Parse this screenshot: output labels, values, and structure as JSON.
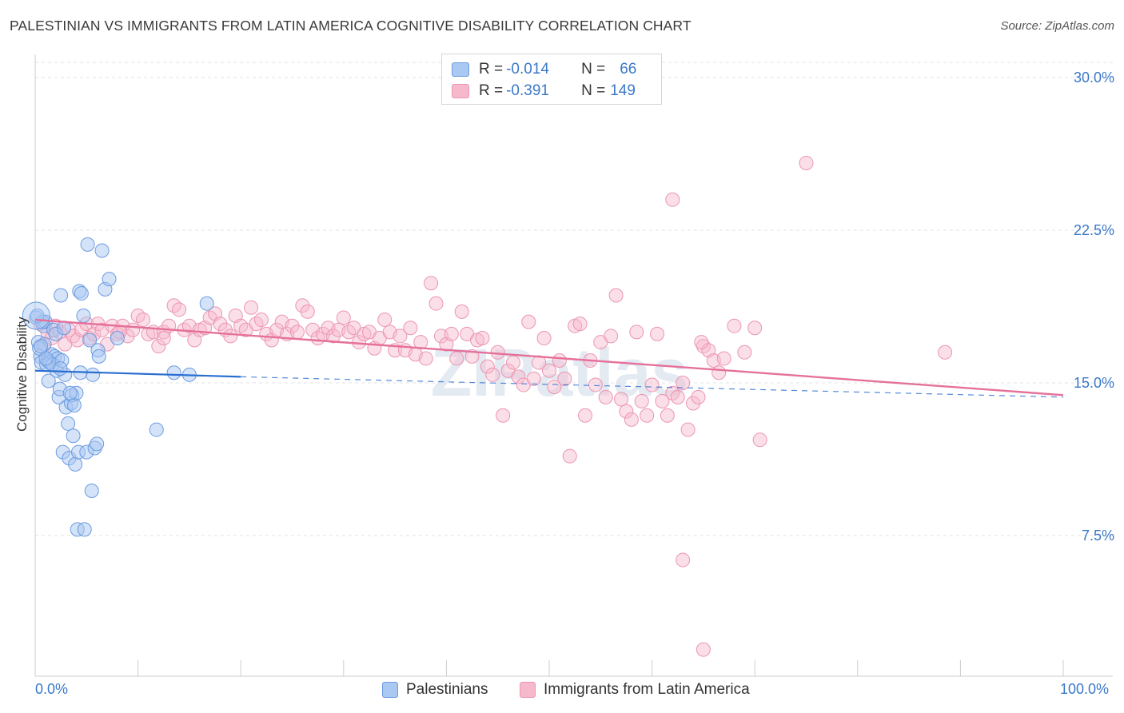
{
  "title": "PALESTINIAN VS IMMIGRANTS FROM LATIN AMERICA COGNITIVE DISABILITY CORRELATION CHART",
  "source": "Source: ZipAtlas.com",
  "watermark": "ZIPatlas",
  "colors": {
    "blue_fill": "#a9c8f2",
    "blue_stroke": "#6c9be0",
    "blue_line": "#2a6ed0",
    "pink_fill": "#f6b8cb",
    "pink_stroke": "#ec95b1",
    "pink_line": "#e5719a",
    "tick_text": "#3a78c9"
  },
  "stats": {
    "row1": {
      "r_label": "R = ",
      "r_value": "-0.014",
      "n_label": "N = ",
      "n_value": "66"
    },
    "row2": {
      "r_label": "R = ",
      "r_value": "-0.391",
      "n_label": "N = ",
      "n_value": "149"
    }
  },
  "legend": {
    "series1": "Palestinians",
    "series2": "Immigrants from Latin America"
  },
  "chart_data": {
    "type": "scatter",
    "title": "PALESTINIAN VS IMMIGRANTS FROM LATIN AMERICA COGNITIVE DISABILITY CORRELATION CHART",
    "xlabel": "",
    "ylabel": "Cognitive Disability",
    "xlim": [
      0,
      100
    ],
    "ylim": [
      0,
      31
    ],
    "x_tick_labels": [
      "0.0%",
      "100.0%"
    ],
    "y_ticks": [
      7.5,
      15.0,
      22.5,
      30.0
    ],
    "y_tick_labels": [
      "7.5%",
      "15.0%",
      "22.5%",
      "30.0%"
    ],
    "grid": true,
    "series": [
      {
        "name": "Palestinians",
        "color": "#a9c8f2",
        "trend": {
          "x0": 0,
          "y0": 15.6,
          "x1": 20,
          "y1": 15.3,
          "dash_to_x": 100,
          "dash_to_y": 14.3
        },
        "points": [
          [
            0.1,
            18.2
          ],
          [
            0.3,
            17.0
          ],
          [
            0.5,
            16.3
          ],
          [
            0.6,
            16.0
          ],
          [
            0.8,
            17.8
          ],
          [
            1.0,
            18.0
          ],
          [
            1.2,
            16.1
          ],
          [
            1.3,
            15.1
          ],
          [
            1.5,
            16.0
          ],
          [
            1.6,
            16.4
          ],
          [
            1.8,
            17.6
          ],
          [
            1.9,
            16.3
          ],
          [
            2.0,
            17.4
          ],
          [
            2.1,
            15.6
          ],
          [
            2.3,
            14.3
          ],
          [
            2.4,
            14.7
          ],
          [
            2.5,
            19.3
          ],
          [
            2.7,
            11.6
          ],
          [
            2.8,
            17.7
          ],
          [
            2.9,
            15.4
          ],
          [
            3.0,
            13.8
          ],
          [
            3.2,
            13.0
          ],
          [
            3.3,
            11.3
          ],
          [
            3.5,
            14.0
          ],
          [
            3.6,
            14.4
          ],
          [
            3.7,
            12.4
          ],
          [
            3.8,
            13.9
          ],
          [
            3.9,
            11.0
          ],
          [
            4.0,
            14.5
          ],
          [
            4.1,
            7.8
          ],
          [
            4.2,
            11.6
          ],
          [
            4.3,
            19.5
          ],
          [
            4.5,
            19.4
          ],
          [
            4.7,
            18.3
          ],
          [
            4.8,
            7.8
          ],
          [
            5.0,
            11.6
          ],
          [
            5.1,
            21.8
          ],
          [
            5.3,
            17.1
          ],
          [
            5.5,
            9.7
          ],
          [
            5.6,
            15.4
          ],
          [
            5.8,
            11.8
          ],
          [
            6.0,
            12.0
          ],
          [
            6.1,
            16.6
          ],
          [
            6.2,
            16.3
          ],
          [
            6.5,
            21.5
          ],
          [
            6.8,
            19.6
          ],
          [
            7.2,
            20.1
          ],
          [
            8.0,
            17.2
          ],
          [
            11.8,
            12.7
          ],
          [
            13.5,
            15.5
          ],
          [
            15.0,
            15.4
          ],
          [
            16.7,
            18.9
          ],
          [
            1.1,
            15.9
          ],
          [
            1.4,
            16.0
          ],
          [
            2.2,
            16.2
          ],
          [
            0.9,
            16.9
          ],
          [
            0.7,
            18.0
          ],
          [
            0.4,
            16.7
          ],
          [
            1.7,
            15.9
          ],
          [
            2.6,
            16.1
          ],
          [
            3.4,
            14.5
          ],
          [
            4.4,
            15.5
          ],
          [
            2.45,
            15.7
          ],
          [
            1.05,
            16.2
          ],
          [
            0.55,
            16.8
          ],
          [
            0.2,
            18.3
          ]
        ],
        "big_point": [
          0.1,
          18.3
        ]
      },
      {
        "name": "Immigrants from Latin America",
        "color": "#f6b8cb",
        "trend": {
          "x0": 0,
          "y0": 18.1,
          "x1": 100,
          "y1": 14.4
        },
        "points": [
          [
            0.5,
            17.9
          ],
          [
            0.8,
            16.8
          ],
          [
            1.2,
            17.5
          ],
          [
            1.6,
            17.2
          ],
          [
            2.0,
            17.8
          ],
          [
            2.4,
            17.5
          ],
          [
            2.9,
            16.9
          ],
          [
            3.3,
            17.6
          ],
          [
            3.7,
            17.3
          ],
          [
            4.1,
            17.1
          ],
          [
            4.5,
            17.6
          ],
          [
            5.0,
            17.9
          ],
          [
            5.3,
            17.2
          ],
          [
            5.7,
            17.4
          ],
          [
            6.1,
            17.9
          ],
          [
            6.5,
            17.6
          ],
          [
            7.0,
            16.9
          ],
          [
            7.5,
            17.8
          ],
          [
            8.0,
            17.4
          ],
          [
            8.5,
            17.8
          ],
          [
            9.0,
            17.3
          ],
          [
            9.5,
            17.6
          ],
          [
            10.0,
            18.3
          ],
          [
            10.5,
            18.1
          ],
          [
            11.0,
            17.4
          ],
          [
            11.5,
            17.5
          ],
          [
            12.0,
            16.8
          ],
          [
            12.5,
            17.5
          ],
          [
            13.0,
            17.8
          ],
          [
            13.5,
            18.8
          ],
          [
            14.0,
            18.6
          ],
          [
            14.5,
            17.6
          ],
          [
            15.0,
            17.8
          ],
          [
            15.5,
            17.1
          ],
          [
            16.0,
            17.6
          ],
          [
            16.5,
            17.7
          ],
          [
            17.0,
            18.2
          ],
          [
            17.5,
            18.4
          ],
          [
            18.0,
            17.9
          ],
          [
            18.5,
            17.6
          ],
          [
            19.0,
            17.3
          ],
          [
            19.5,
            18.3
          ],
          [
            20.0,
            17.8
          ],
          [
            20.5,
            17.6
          ],
          [
            21.0,
            18.7
          ],
          [
            21.5,
            17.9
          ],
          [
            22.0,
            18.1
          ],
          [
            22.5,
            17.4
          ],
          [
            23.0,
            17.1
          ],
          [
            23.5,
            17.6
          ],
          [
            24.0,
            18.0
          ],
          [
            24.5,
            17.4
          ],
          [
            25.0,
            17.8
          ],
          [
            25.5,
            17.5
          ],
          [
            26.0,
            18.8
          ],
          [
            26.5,
            18.5
          ],
          [
            27.0,
            17.6
          ],
          [
            27.5,
            17.2
          ],
          [
            28.0,
            17.4
          ],
          [
            28.5,
            17.7
          ],
          [
            29.0,
            17.3
          ],
          [
            29.5,
            17.6
          ],
          [
            30.0,
            18.2
          ],
          [
            30.5,
            17.5
          ],
          [
            31.0,
            17.7
          ],
          [
            31.5,
            17.0
          ],
          [
            32.0,
            17.4
          ],
          [
            32.5,
            17.5
          ],
          [
            33.0,
            16.7
          ],
          [
            33.5,
            17.2
          ],
          [
            34.0,
            18.1
          ],
          [
            34.5,
            17.5
          ],
          [
            35.0,
            16.6
          ],
          [
            35.5,
            17.3
          ],
          [
            36.0,
            16.6
          ],
          [
            36.5,
            17.7
          ],
          [
            37.0,
            16.4
          ],
          [
            37.5,
            17.0
          ],
          [
            38.0,
            16.2
          ],
          [
            38.5,
            19.9
          ],
          [
            39.0,
            18.9
          ],
          [
            39.5,
            17.3
          ],
          [
            40.0,
            16.9
          ],
          [
            40.5,
            17.4
          ],
          [
            41.0,
            16.2
          ],
          [
            41.5,
            18.5
          ],
          [
            42.0,
            17.4
          ],
          [
            42.5,
            16.3
          ],
          [
            43.0,
            17.1
          ],
          [
            43.5,
            17.2
          ],
          [
            44.0,
            15.8
          ],
          [
            44.5,
            15.4
          ],
          [
            45.0,
            16.5
          ],
          [
            45.5,
            13.4
          ],
          [
            46.0,
            15.6
          ],
          [
            46.5,
            16.0
          ],
          [
            47.0,
            15.3
          ],
          [
            47.5,
            14.9
          ],
          [
            48.0,
            18.0
          ],
          [
            48.5,
            15.2
          ],
          [
            49.0,
            16.0
          ],
          [
            49.5,
            17.2
          ],
          [
            50.0,
            15.6
          ],
          [
            50.5,
            14.8
          ],
          [
            51.0,
            16.1
          ],
          [
            51.5,
            15.2
          ],
          [
            52.0,
            11.4
          ],
          [
            52.5,
            17.8
          ],
          [
            53.0,
            17.9
          ],
          [
            53.5,
            13.4
          ],
          [
            54.0,
            16.1
          ],
          [
            54.5,
            14.9
          ],
          [
            55.0,
            17.0
          ],
          [
            55.5,
            14.3
          ],
          [
            56.0,
            17.3
          ],
          [
            56.5,
            19.3
          ],
          [
            57.0,
            14.2
          ],
          [
            57.5,
            13.6
          ],
          [
            58.0,
            13.2
          ],
          [
            58.5,
            17.5
          ],
          [
            59.0,
            14.1
          ],
          [
            59.5,
            13.4
          ],
          [
            60.0,
            14.9
          ],
          [
            60.5,
            17.4
          ],
          [
            61.0,
            14.1
          ],
          [
            61.5,
            13.4
          ],
          [
            62.0,
            14.5
          ],
          [
            62.5,
            14.3
          ],
          [
            63.0,
            15.0
          ],
          [
            63.5,
            12.7
          ],
          [
            64.0,
            14.0
          ],
          [
            64.5,
            14.3
          ],
          [
            65.0,
            16.8
          ],
          [
            65.5,
            16.6
          ],
          [
            66.0,
            16.1
          ],
          [
            66.5,
            15.5
          ],
          [
            67.0,
            16.2
          ],
          [
            68.0,
            17.8
          ],
          [
            69.0,
            16.5
          ],
          [
            70.0,
            17.7
          ],
          [
            70.5,
            12.2
          ],
          [
            88.5,
            16.5
          ],
          [
            62.0,
            24.0
          ],
          [
            75.0,
            25.8
          ],
          [
            63.0,
            6.3
          ],
          [
            65.0,
            1.9
          ],
          [
            64.8,
            17.0
          ],
          [
            12.5,
            17.2
          ],
          [
            8.2,
            17.5
          ]
        ]
      }
    ]
  }
}
